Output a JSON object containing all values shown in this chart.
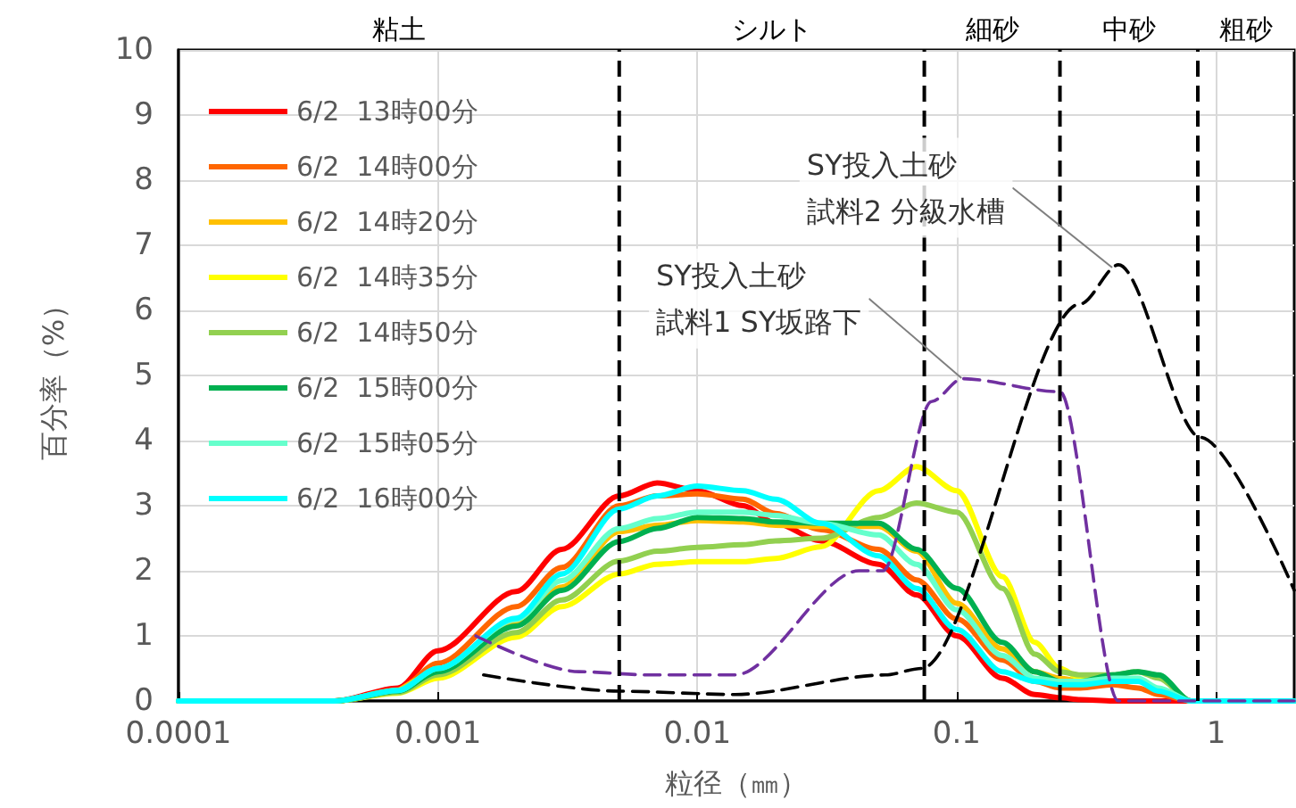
{
  "chart_data": {
    "type": "line",
    "xlabel": "粒径（㎜）",
    "ylabel": "百分率（%）",
    "log": "x",
    "grid": true,
    "legend": "top left",
    "marker": "none",
    "line_style": "solid",
    "xlim": [
      0.0001,
      2
    ],
    "xticks": [
      0.0001,
      0.001,
      0.01,
      0.1,
      1
    ],
    "ylim": [
      0,
      10
    ],
    "yticks": [
      0,
      1,
      2,
      3,
      4,
      5,
      6,
      7,
      8,
      9,
      10
    ],
    "x": [
      0.0001,
      0.0004,
      0.0007,
      0.001,
      0.002,
      0.003,
      0.005,
      0.007,
      0.01,
      0.015,
      0.02,
      0.03,
      0.05,
      0.07,
      0.1,
      0.15,
      0.2,
      0.25,
      0.3,
      0.4,
      0.5,
      0.6,
      0.8,
      1,
      2
    ],
    "series": [
      {
        "name": "6/2  13時00分",
        "color": "#ff0000",
        "values": [
          0,
          0,
          0.2,
          0.77,
          1.68,
          2.33,
          3.15,
          3.35,
          3.23,
          3.0,
          2.73,
          2.46,
          2.1,
          1.63,
          1.0,
          0.35,
          0.1,
          0.05,
          0.02,
          0,
          0,
          0,
          0,
          0,
          0
        ]
      },
      {
        "name": "6/2  14時00分",
        "color": "#ff6600",
        "values": [
          0,
          0,
          0.17,
          0.58,
          1.45,
          2.05,
          3.0,
          3.15,
          3.18,
          3.1,
          2.88,
          2.63,
          2.33,
          1.86,
          1.26,
          0.63,
          0.3,
          0.2,
          0.2,
          0.25,
          0.2,
          0.1,
          0,
          0,
          0
        ]
      },
      {
        "name": "6/2  14時20分",
        "color": "#ffc000",
        "values": [
          null,
          null,
          0.15,
          0.45,
          1.2,
          1.75,
          2.6,
          2.7,
          2.77,
          2.75,
          2.7,
          2.68,
          2.68,
          2.3,
          1.5,
          0.8,
          0.45,
          0.35,
          0.3,
          0.3,
          null,
          null,
          null,
          null,
          null
        ]
      },
      {
        "name": "6/2  14時35分",
        "color": "#ffff00",
        "values": [
          0,
          0,
          0.12,
          0.35,
          0.98,
          1.45,
          1.95,
          2.1,
          2.14,
          2.14,
          2.19,
          2.37,
          3.23,
          3.6,
          3.23,
          1.91,
          0.9,
          0.5,
          0.35,
          0.3,
          null,
          null,
          null,
          null,
          null
        ]
      },
      {
        "name": "6/2  14時50分",
        "color": "#92d050",
        "values": [
          0,
          0,
          0.13,
          0.4,
          1.05,
          1.55,
          2.15,
          2.3,
          2.36,
          2.4,
          2.46,
          2.5,
          2.82,
          3.04,
          2.9,
          1.73,
          0.72,
          0.45,
          0.4,
          0.4,
          0.45,
          0.35,
          0,
          0,
          0
        ]
      },
      {
        "name": "6/2  15時00分",
        "color": "#00b050",
        "values": [
          0,
          0,
          0.15,
          0.45,
          1.15,
          1.7,
          2.45,
          2.65,
          2.82,
          2.8,
          2.75,
          2.73,
          2.73,
          2.33,
          1.73,
          0.9,
          0.45,
          0.3,
          0.3,
          0.4,
          0.45,
          0.4,
          0,
          0,
          0
        ]
      },
      {
        "name": "6/2  15時05分",
        "color": "#66ffcc",
        "values": [
          0,
          0,
          0.16,
          0.5,
          1.25,
          1.85,
          2.65,
          2.8,
          2.9,
          2.9,
          2.85,
          2.73,
          2.55,
          2.1,
          1.4,
          0.7,
          0.35,
          0.3,
          0.3,
          0.35,
          0.35,
          0.2,
          0,
          0,
          0
        ]
      },
      {
        "name": "6/2  16時00分",
        "color": "#00ffff",
        "values": [
          0,
          0,
          0.16,
          0.5,
          1.27,
          1.95,
          2.95,
          3.15,
          3.3,
          3.23,
          3.1,
          2.73,
          2.23,
          1.73,
          1.1,
          0.45,
          0.3,
          0.25,
          0.25,
          0.3,
          0.3,
          0.15,
          0,
          0,
          0
        ]
      },
      {
        "color": "#7030a0",
        "line_style": "dashed",
        "x": [
          0.0014,
          0.0035,
          0.0065,
          0.014,
          0.042,
          0.052,
          0.08,
          0.105,
          0.25,
          0.42,
          2
        ],
        "values": [
          1.0,
          0.45,
          0.4,
          0.4,
          2.0,
          2.0,
          4.6,
          4.95,
          4.75,
          0,
          0
        ]
      },
      {
        "color": "#000000",
        "line_style": "dashed",
        "x": [
          0.0015,
          0.005,
          0.014,
          0.053,
          0.073,
          0.3,
          0.42,
          0.87,
          2
        ],
        "values": [
          0.4,
          0.15,
          0.1,
          0.4,
          0.5,
          6.1,
          6.7,
          4.05,
          1.7
        ]
      }
    ],
    "ref_lines": [
      {
        "axis": "x",
        "value": 0.005,
        "color": "#000000",
        "line_style": "dashed"
      },
      {
        "axis": "x",
        "value": 0.075,
        "color": "#000000",
        "line_style": "dashed"
      },
      {
        "axis": "x",
        "value": 0.25,
        "color": "#000000",
        "line_style": "dashed"
      },
      {
        "axis": "x",
        "value": 0.85,
        "color": "#000000",
        "line_style": "dashed"
      }
    ],
    "annotations": [
      "粘土",
      "シルト",
      "細砂",
      "中砂",
      "粗砂",
      "SY投入土砂",
      {
        "text": "試料1 SY坂路下",
        "x": 0.105,
        "y": 4.95
      },
      "SY投入土砂",
      {
        "text": "試料2 分級水槽",
        "x": 0.4,
        "y": 6.65
      }
    ]
  }
}
